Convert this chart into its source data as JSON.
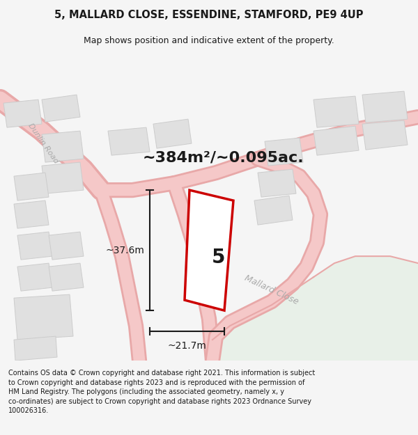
{
  "title_line1": "5, MALLARD CLOSE, ESSENDINE, STAMFORD, PE9 4UP",
  "title_line2": "Map shows position and indicative extent of the property.",
  "area_text": "~384m²/~0.095ac.",
  "plot_number": "5",
  "dim_height": "~37.6m",
  "dim_width": "~21.7m",
  "road_label": "Mallard Close",
  "dunlin_road_label": "Dunlin Road",
  "footer_text": "Contains OS data © Crown copyright and database right 2021. This information is subject to Crown copyright and database rights 2023 and is reproduced with the permission of HM Land Registry. The polygons (including the associated geometry, namely x, y co-ordinates) are subject to Crown copyright and database rights 2023 Ordnance Survey 100026316.",
  "bg_color": "#f5f5f5",
  "map_bg": "#ffffff",
  "plot_fill": "#ffffff",
  "plot_edge_color": "#cc0000",
  "road_color": "#f5c8c8",
  "road_edge_color": "#e8a8a8",
  "building_color": "#e0e0e0",
  "building_edge_color": "#cccccc",
  "dim_line_color": "#1a1a1a",
  "text_color": "#1a1a1a",
  "road_text_color": "#aaaaaa",
  "green_area_color": "#e8f0e8"
}
